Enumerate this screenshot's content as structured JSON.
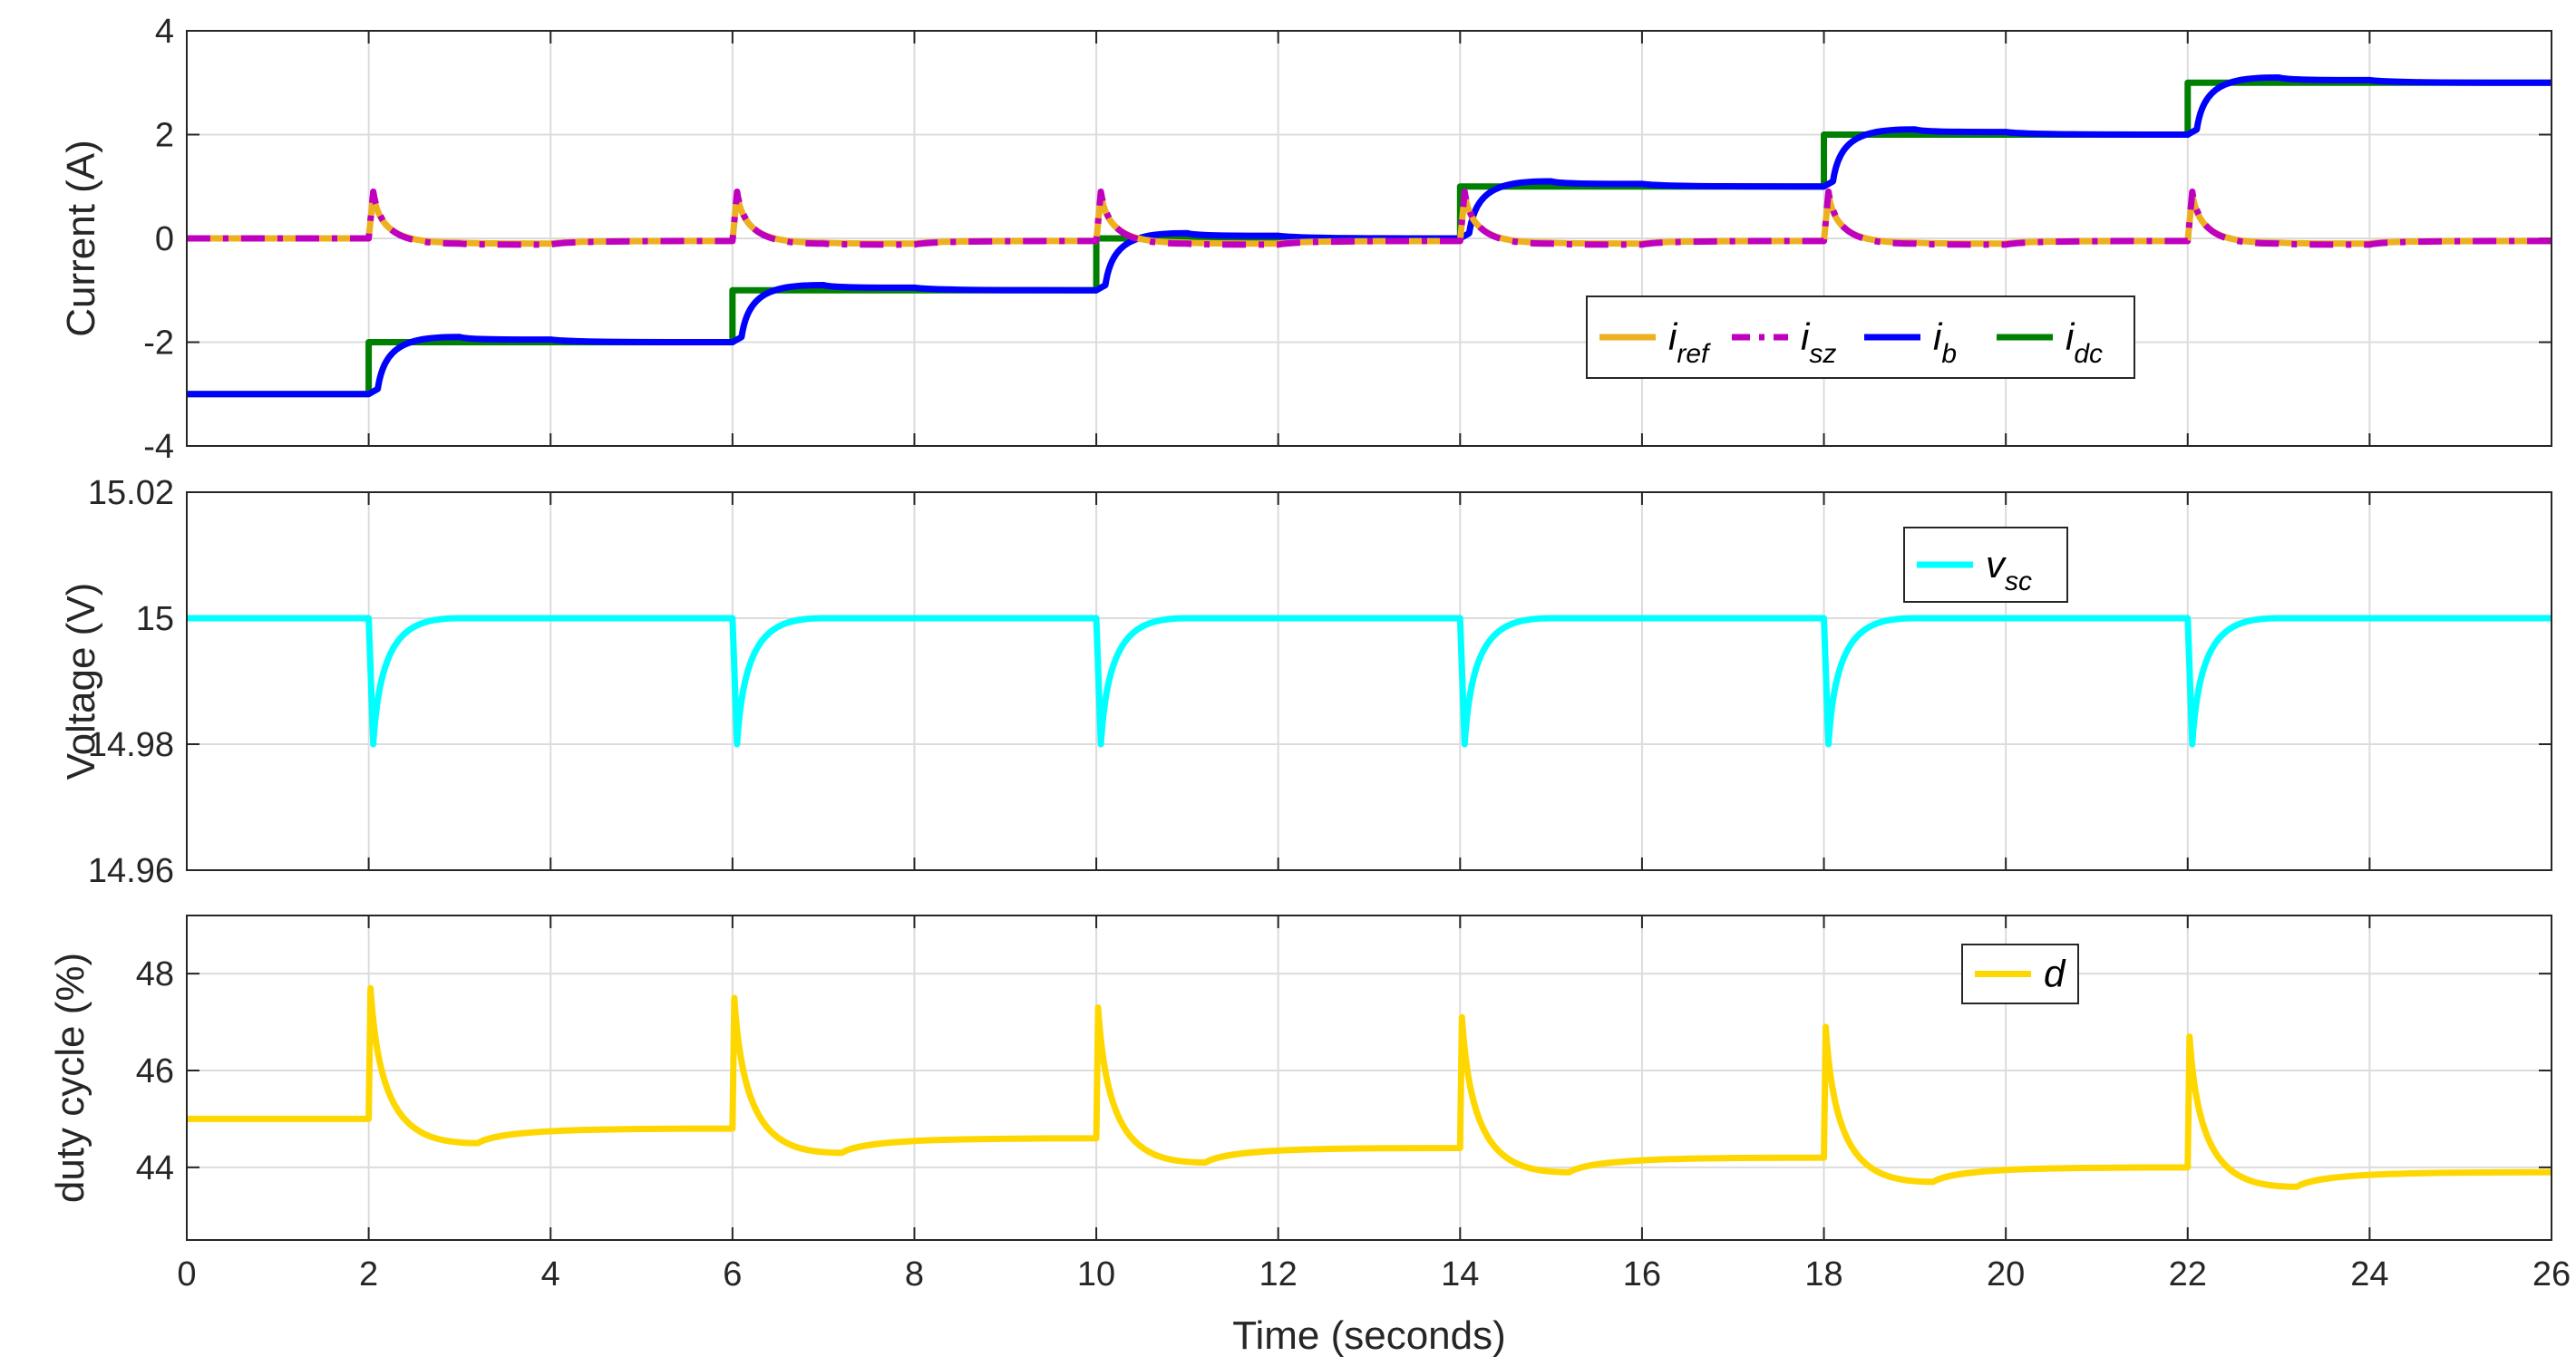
{
  "chart_data": [
    {
      "type": "line",
      "panel": "current",
      "ylabel": "Current (A)",
      "xlim": [
        0,
        26
      ],
      "ylim": [
        -4,
        4
      ],
      "yticks": [
        "-4",
        "-2",
        "0",
        "2",
        "4"
      ],
      "grid": true,
      "legend": {
        "placement": "right-center"
      },
      "series": [
        {
          "name": "i_ref",
          "base": "i",
          "sub": "ref",
          "color": "#EDB120",
          "dash": "solid",
          "x": [
            0,
            2,
            2.05,
            3,
            4,
            6,
            6.05,
            7,
            8,
            10,
            10.05,
            11,
            12,
            14,
            14.05,
            15,
            16,
            18,
            18.05,
            19,
            20,
            22,
            22.05,
            23,
            24,
            26
          ],
          "y": [
            0,
            0,
            0.85,
            -0.08,
            -0.1,
            -0.05,
            0.85,
            -0.08,
            -0.1,
            -0.05,
            0.85,
            -0.08,
            -0.1,
            -0.05,
            0.85,
            -0.08,
            -0.1,
            -0.05,
            0.85,
            -0.08,
            -0.1,
            -0.05,
            0.85,
            -0.08,
            -0.1,
            -0.05
          ]
        },
        {
          "name": "i_sz",
          "base": "i",
          "sub": "sz",
          "color": "#BF00BF",
          "dash": "dashdot",
          "x": [
            0,
            2,
            2.05,
            3,
            4,
            6,
            6.05,
            7,
            8,
            10,
            10.05,
            11,
            12,
            14,
            14.05,
            15,
            16,
            18,
            18.05,
            19,
            20,
            22,
            22.05,
            23,
            24,
            26
          ],
          "y": [
            0,
            0,
            0.9,
            -0.1,
            -0.12,
            -0.05,
            0.9,
            -0.1,
            -0.12,
            -0.05,
            0.9,
            -0.1,
            -0.12,
            -0.05,
            0.9,
            -0.1,
            -0.12,
            -0.05,
            0.9,
            -0.1,
            -0.12,
            -0.05,
            0.9,
            -0.1,
            -0.12,
            -0.05
          ]
        },
        {
          "name": "i_b",
          "base": "i",
          "sub": "b",
          "color": "#0000FF",
          "dash": "solid",
          "x": [
            0,
            2,
            2.1,
            3,
            4,
            6,
            6.1,
            7,
            8,
            10,
            10.1,
            11,
            12,
            14,
            14.1,
            15,
            16,
            18,
            18.1,
            19,
            20,
            22,
            22.1,
            23,
            24,
            26
          ],
          "y": [
            -3,
            -3,
            -2.9,
            -1.9,
            -1.95,
            -2,
            -1.9,
            -0.9,
            -0.95,
            -1,
            -0.9,
            0.1,
            0.05,
            0,
            0.1,
            1.1,
            1.05,
            1,
            1.1,
            2.1,
            2.05,
            2,
            2.1,
            3.1,
            3.05,
            3
          ]
        },
        {
          "name": "i_dc",
          "base": "i",
          "sub": "dc",
          "color": "#008000",
          "dash": "solid",
          "x": [
            0,
            2,
            2,
            6,
            6,
            10,
            10,
            14,
            14,
            18,
            18,
            22,
            22,
            26
          ],
          "y": [
            -3,
            -3,
            -2,
            -2,
            -1,
            -1,
            0,
            0,
            1,
            1,
            2,
            2,
            3,
            3
          ]
        }
      ]
    },
    {
      "type": "line",
      "panel": "voltage",
      "ylabel": "Voltage (V)",
      "xlim": [
        0,
        26
      ],
      "ylim": [
        14.96,
        15.02
      ],
      "yticks": [
        "14.96",
        "14.98",
        "15",
        "15.02"
      ],
      "grid": true,
      "legend": {
        "placement": "top-right"
      },
      "series": [
        {
          "name": "v_sc",
          "base": "v",
          "sub": "sc",
          "color": "#00FFFF",
          "dash": "solid",
          "x": [
            0,
            2,
            2.05,
            3,
            4,
            6,
            6.05,
            7,
            8,
            10,
            10.05,
            11,
            12,
            14,
            14.05,
            15,
            16,
            18,
            18.05,
            19,
            20,
            22,
            22.05,
            23,
            24,
            26
          ],
          "y": [
            15,
            15,
            14.98,
            15.0,
            15.0,
            15.0,
            14.98,
            15.0,
            15.0,
            15.0,
            14.98,
            15.0,
            15.0,
            15.0,
            14.98,
            15.0,
            15.0,
            15.0,
            14.98,
            15.0,
            15.0,
            15.0,
            14.98,
            15.0,
            15.0,
            15.0
          ]
        }
      ]
    },
    {
      "type": "line",
      "panel": "duty",
      "ylabel": "duty cycle (%)",
      "xlabel": "Time (seconds)",
      "xlim": [
        0,
        26
      ],
      "ylim": [
        42.5,
        49.2
      ],
      "xticks": [
        "0",
        "2",
        "4",
        "6",
        "8",
        "10",
        "12",
        "14",
        "16",
        "18",
        "20",
        "22",
        "24",
        "26"
      ],
      "yticks": [
        "44",
        "46",
        "48"
      ],
      "grid": true,
      "legend": {
        "placement": "top-right"
      },
      "series": [
        {
          "name": "d",
          "base": "d",
          "sub": "",
          "color": "#FFD700",
          "dash": "solid",
          "x": [
            0,
            2,
            2.02,
            3.2,
            6,
            6.02,
            7.2,
            10,
            10.02,
            11.2,
            14,
            14.02,
            15.2,
            18,
            18.02,
            19.2,
            22,
            22.02,
            23.2,
            26
          ],
          "y": [
            45,
            45,
            47.7,
            44.5,
            44.8,
            47.5,
            44.3,
            44.6,
            47.3,
            44.1,
            44.4,
            47.1,
            43.9,
            44.2,
            46.9,
            43.7,
            44.0,
            46.7,
            43.6,
            43.9
          ]
        }
      ]
    }
  ]
}
